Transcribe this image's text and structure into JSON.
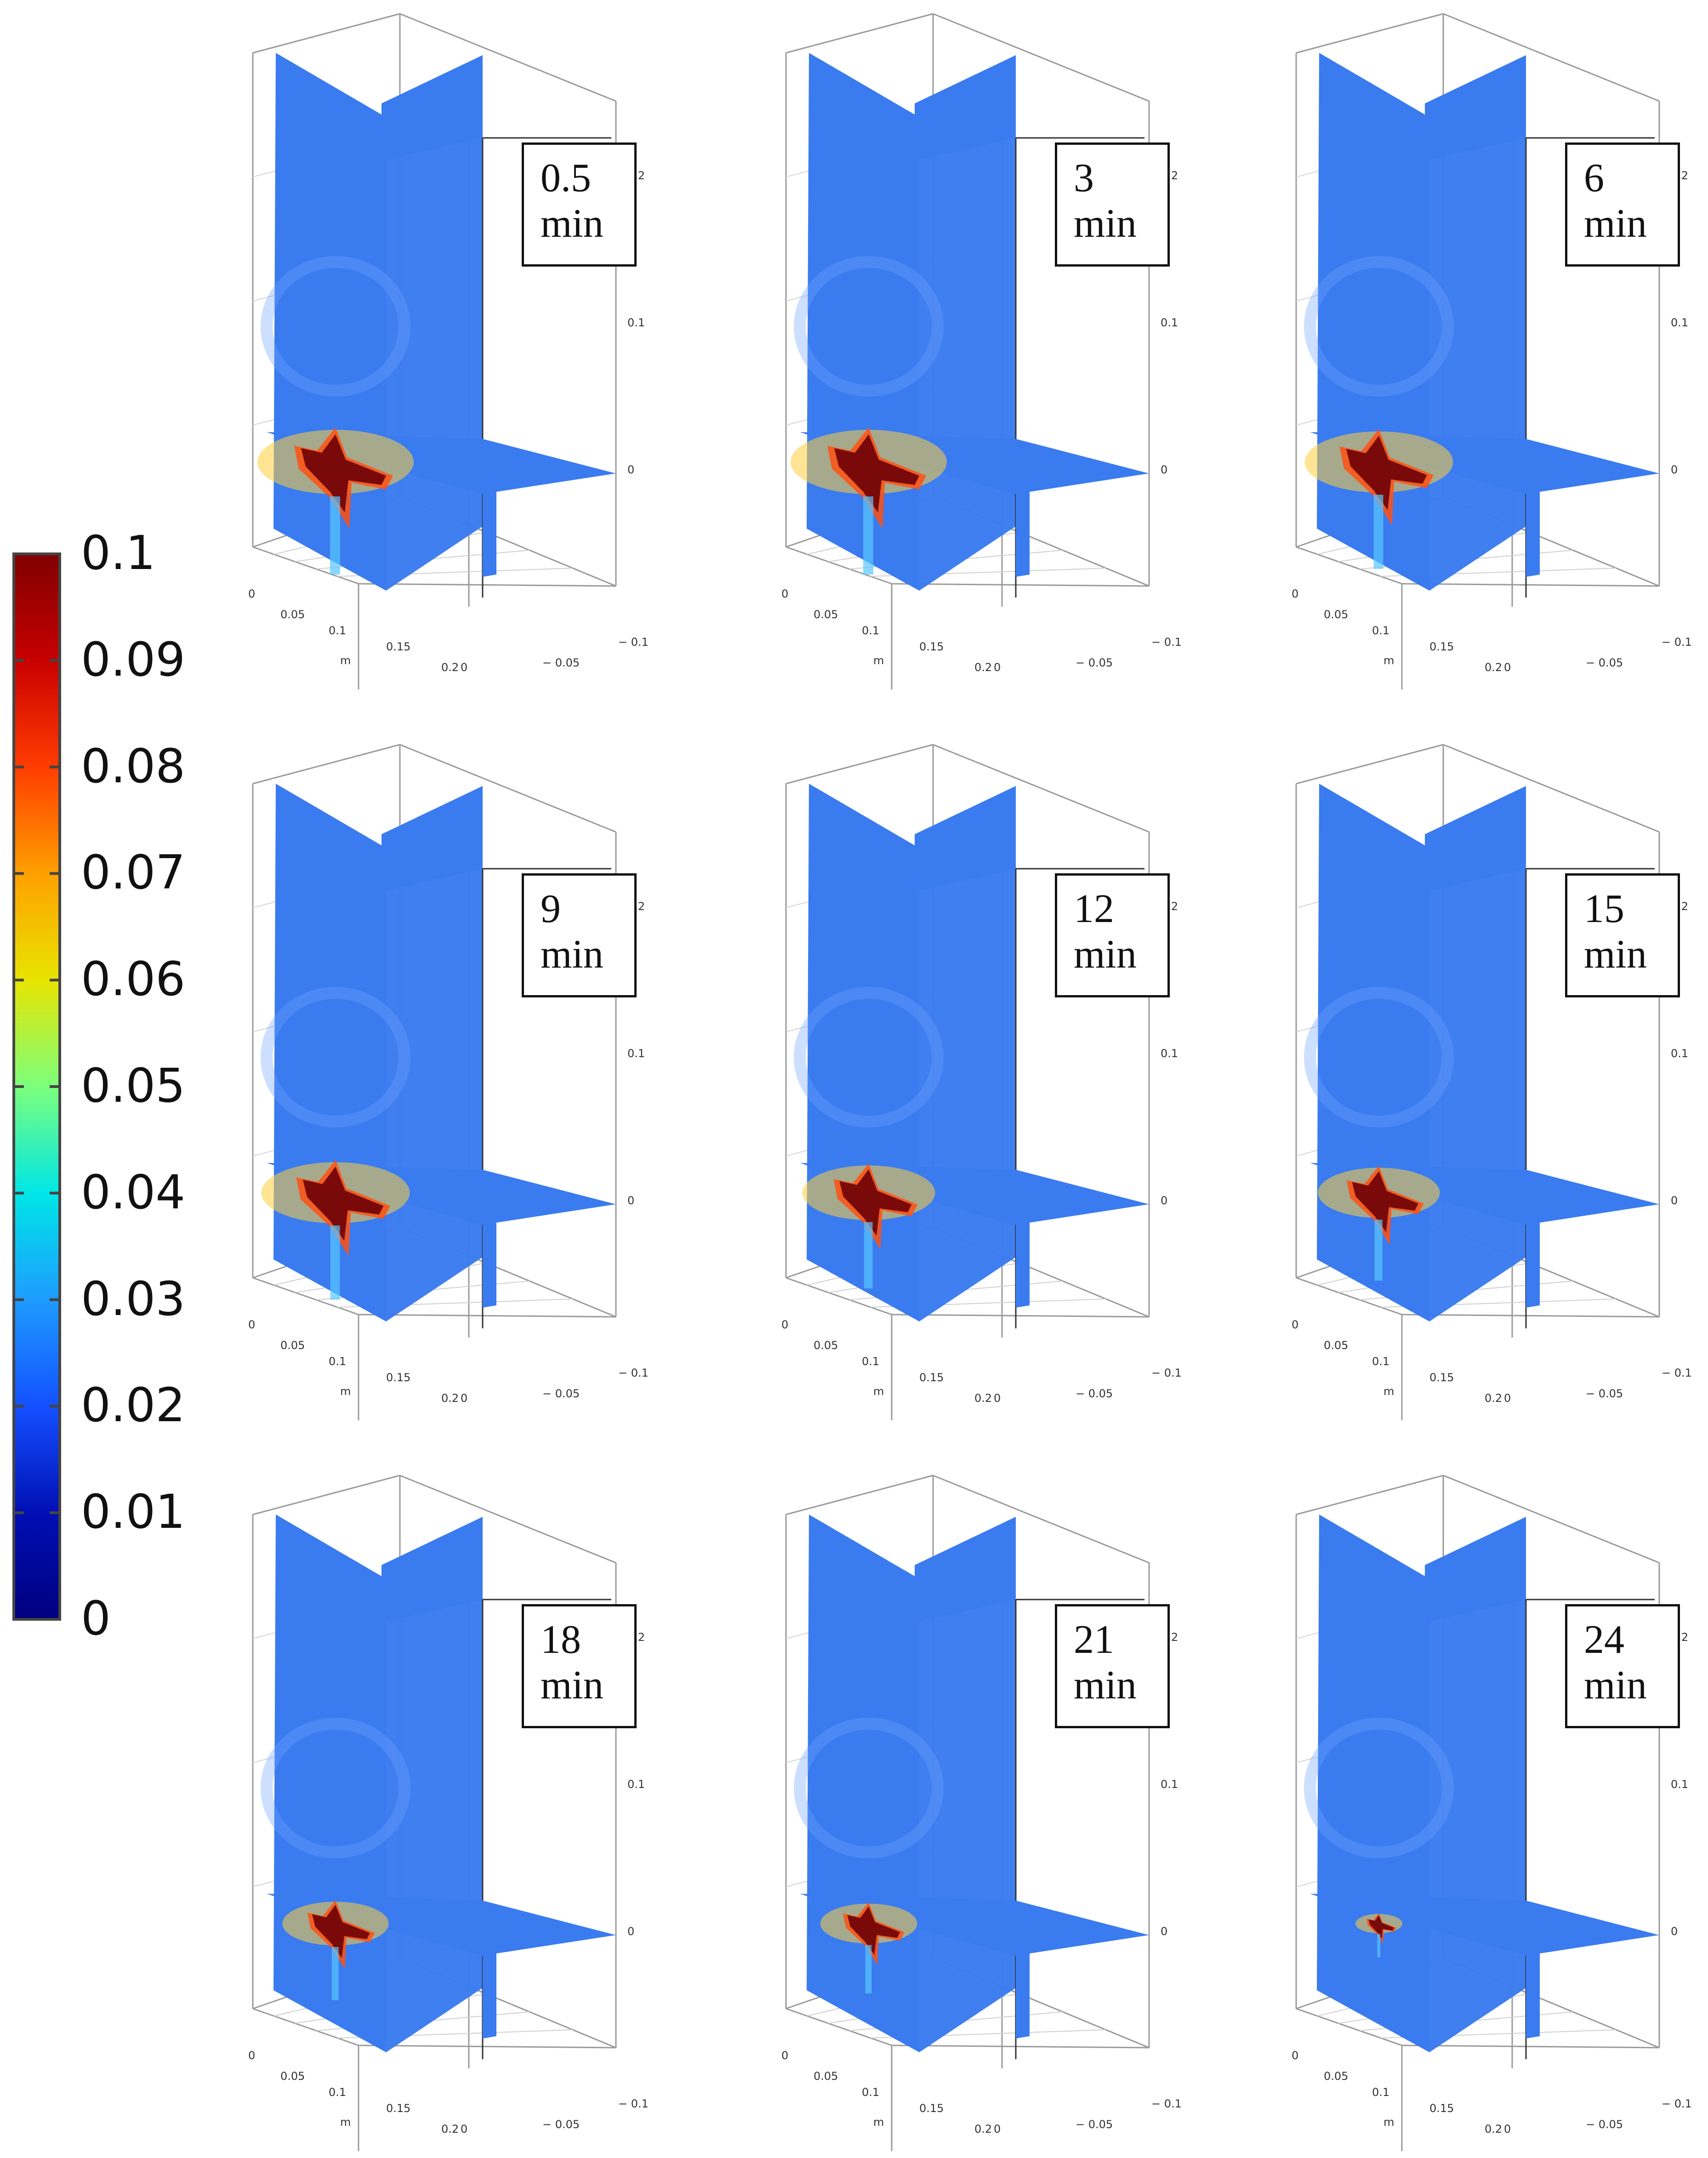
{
  "colorbar": {
    "ticks": [
      "0.1",
      "0.09",
      "0.08",
      "0.07",
      "0.06",
      "0.05",
      "0.04",
      "0.03",
      "0.02",
      "0.01",
      "0"
    ],
    "colors": [
      "#7f0000",
      "#c80000",
      "#ff3c00",
      "#ffa000",
      "#e8e400",
      "#7cff7c",
      "#00e6e6",
      "#1e9cff",
      "#1450ff",
      "#000fb4",
      "#00007f"
    ]
  },
  "panel_colors": {
    "field": "#3a7bf0",
    "hot": "#7a0a0a",
    "edge": "#333333"
  },
  "tick_labels": {
    "z_top": "0.2",
    "z_mid": "0.1",
    "z_zero": "0",
    "x0": "0",
    "x1": "0.05",
    "x2": "0.1",
    "x3": "0.15",
    "x4": "0.2",
    "x_unit": "m",
    "y0": "0",
    "y1": "− 0.05",
    "y2": "− 0.1"
  },
  "panels": [
    {
      "value": "0.5",
      "unit": "min",
      "size": 1.0
    },
    {
      "value": "3",
      "unit": "min",
      "size": 1.0
    },
    {
      "value": "6",
      "unit": "min",
      "size": 0.95
    },
    {
      "value": "9",
      "unit": "min",
      "size": 0.95
    },
    {
      "value": "12",
      "unit": "min",
      "size": 0.85
    },
    {
      "value": "15",
      "unit": "min",
      "size": 0.78
    },
    {
      "value": "18",
      "unit": "min",
      "size": 0.68
    },
    {
      "value": "21",
      "unit": "min",
      "size": 0.62
    },
    {
      "value": "24",
      "unit": "min",
      "size": 0.3
    }
  ]
}
